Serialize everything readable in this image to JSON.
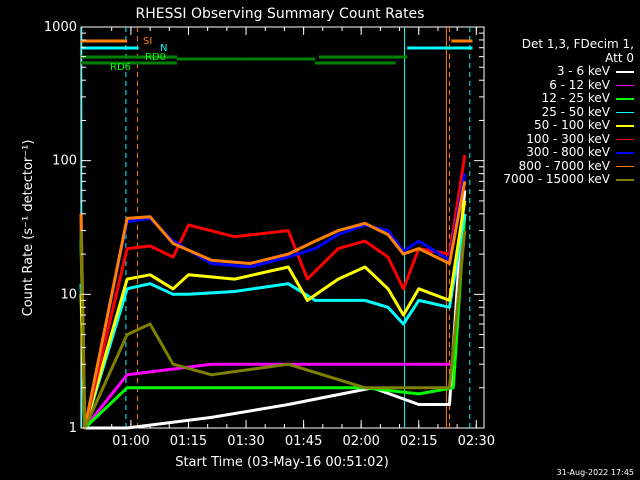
{
  "chart_data": {
    "type": "line",
    "title": "RHESSI Observing Summary Count Rates",
    "xlabel": "Start Time (03-May-16 00:51:02)",
    "ylabel": "Count Rate (s⁻¹ detector⁻¹)",
    "y_scale": "log",
    "ylim": [
      1,
      1000
    ],
    "xlim_minutes": [
      -4,
      101
    ],
    "x_ticks": [
      {
        "label": "01:00",
        "t": 9
      },
      {
        "label": "01:15",
        "t": 24
      },
      {
        "label": "01:30",
        "t": 39
      },
      {
        "label": "01:45",
        "t": 54
      },
      {
        "label": "02:00",
        "t": 69
      },
      {
        "label": "02:15",
        "t": 84
      },
      {
        "label": "02:30",
        "t": 99
      }
    ],
    "y_ticks": [
      {
        "label": "1",
        "v": 1
      },
      {
        "label": "10",
        "v": 10
      },
      {
        "label": "100",
        "v": 100
      },
      {
        "label": "1000",
        "v": 1000
      }
    ],
    "legend_header": [
      "Det 1,3, FDecim 1,",
      "Att 0"
    ],
    "series": [
      {
        "name": "3 - 6 keV",
        "color": "#ffffff",
        "points": [
          [
            -4,
            40
          ],
          [
            -3,
            1
          ],
          [
            8,
            1
          ],
          [
            30,
            1.2
          ],
          [
            50,
            1.5
          ],
          [
            64,
            1.8
          ],
          [
            72,
            2
          ],
          [
            84,
            1.5
          ],
          [
            92,
            1.5
          ],
          [
            95,
            30
          ],
          [
            96,
            60
          ]
        ]
      },
      {
        "name": "6 - 12 keV",
        "color": "#ff00ff",
        "points": [
          [
            -4,
            30
          ],
          [
            -3,
            1
          ],
          [
            8,
            2.5
          ],
          [
            30,
            3
          ],
          [
            50,
            3
          ],
          [
            70,
            3
          ],
          [
            84,
            3
          ],
          [
            93,
            3
          ],
          [
            96,
            40
          ]
        ]
      },
      {
        "name": "12 - 25 keV",
        "color": "#00ff00",
        "points": [
          [
            -4,
            25
          ],
          [
            -3,
            1
          ],
          [
            8,
            2
          ],
          [
            30,
            2
          ],
          [
            50,
            2
          ],
          [
            70,
            2
          ],
          [
            84,
            1.8
          ],
          [
            93,
            2
          ],
          [
            96,
            40
          ]
        ]
      },
      {
        "name": "25 - 50 keV",
        "color": "#00ffff",
        "points": [
          [
            -4,
            12
          ],
          [
            -3,
            1
          ],
          [
            8,
            11
          ],
          [
            14,
            12
          ],
          [
            20,
            10
          ],
          [
            24,
            10
          ],
          [
            36,
            10.5
          ],
          [
            50,
            12
          ],
          [
            57,
            9
          ],
          [
            63,
            9
          ],
          [
            70,
            9
          ],
          [
            76,
            8
          ],
          [
            80,
            6
          ],
          [
            84,
            9
          ],
          [
            92,
            8
          ],
          [
            96,
            40
          ]
        ]
      },
      {
        "name": "50 - 100 keV",
        "color": "#ffff00",
        "points": [
          [
            -4,
            10
          ],
          [
            -3,
            1
          ],
          [
            8,
            13
          ],
          [
            14,
            14
          ],
          [
            20,
            11
          ],
          [
            24,
            14
          ],
          [
            36,
            13
          ],
          [
            50,
            16
          ],
          [
            55,
            9
          ],
          [
            63,
            13
          ],
          [
            70,
            16
          ],
          [
            76,
            11
          ],
          [
            80,
            7
          ],
          [
            84,
            11
          ],
          [
            92,
            9
          ],
          [
            96,
            50
          ]
        ]
      },
      {
        "name": "100 - 300 keV",
        "color": "#ff0000",
        "points": [
          [
            -4,
            40
          ],
          [
            -3,
            1
          ],
          [
            8,
            22
          ],
          [
            14,
            23
          ],
          [
            20,
            19
          ],
          [
            24,
            33
          ],
          [
            36,
            27
          ],
          [
            50,
            30
          ],
          [
            55,
            13
          ],
          [
            63,
            22
          ],
          [
            70,
            25
          ],
          [
            76,
            19
          ],
          [
            80,
            11
          ],
          [
            84,
            22
          ],
          [
            92,
            20
          ],
          [
            96,
            110
          ]
        ]
      },
      {
        "name": "300 - 800 keV",
        "color": "#0000ff",
        "points": [
          [
            -4,
            40
          ],
          [
            -3,
            1
          ],
          [
            8,
            35
          ],
          [
            14,
            37
          ],
          [
            20,
            25
          ],
          [
            30,
            17
          ],
          [
            40,
            16
          ],
          [
            50,
            19
          ],
          [
            57,
            22
          ],
          [
            63,
            28
          ],
          [
            70,
            33
          ],
          [
            76,
            30
          ],
          [
            80,
            21
          ],
          [
            84,
            25
          ],
          [
            92,
            18
          ],
          [
            96,
            80
          ]
        ]
      },
      {
        "name": "800 - 7000 keV",
        "color": "#ff8000",
        "points": [
          [
            -4,
            40
          ],
          [
            -3,
            1
          ],
          [
            8,
            37
          ],
          [
            14,
            38
          ],
          [
            20,
            24
          ],
          [
            30,
            18
          ],
          [
            40,
            17
          ],
          [
            50,
            20
          ],
          [
            57,
            25
          ],
          [
            63,
            30
          ],
          [
            70,
            34
          ],
          [
            76,
            28
          ],
          [
            80,
            20
          ],
          [
            84,
            22
          ],
          [
            92,
            17
          ],
          [
            96,
            70
          ]
        ]
      },
      {
        "name": "7000 - 15000 keV",
        "color": "#808000",
        "points": [
          [
            -4,
            30
          ],
          [
            -3,
            1
          ],
          [
            8,
            5
          ],
          [
            14,
            6
          ],
          [
            20,
            3
          ],
          [
            30,
            2.5
          ],
          [
            50,
            3
          ],
          [
            70,
            2
          ],
          [
            84,
            2
          ],
          [
            92,
            2
          ],
          [
            96,
            30
          ]
        ]
      }
    ],
    "flag_labels": [
      "SI",
      "N",
      "RD0",
      "RD6"
    ]
  },
  "footer": {
    "timestamp": "31-Aug-2022 17:45"
  }
}
